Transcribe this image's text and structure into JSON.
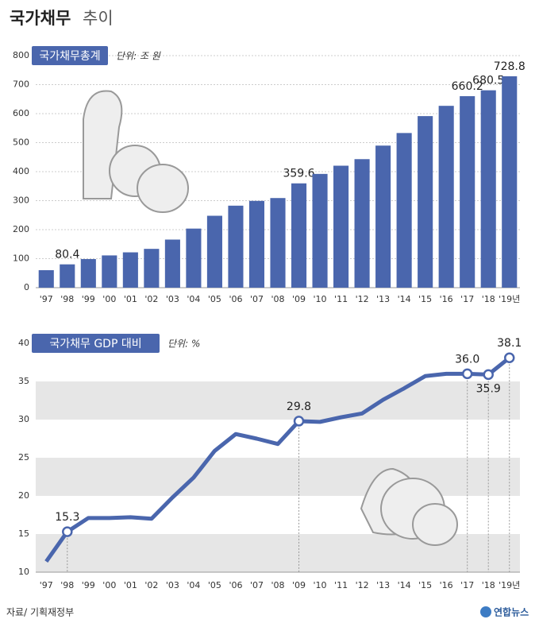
{
  "header": {
    "title": "국가채무",
    "title_suffix": "추이"
  },
  "chart_data": [
    {
      "type": "bar",
      "title": "국가채무총계",
      "unit": "단위: 조 원",
      "color": "#4a66ad",
      "categories": [
        "'97",
        "'98",
        "'99",
        "'00",
        "'01",
        "'02",
        "'03",
        "'04",
        "'05",
        "'06",
        "'07",
        "'08",
        "'09",
        "'10",
        "'11",
        "'12",
        "'13",
        "'14",
        "'15",
        "'16",
        "'17",
        "'18",
        "'19년"
      ],
      "values": [
        60.3,
        80.4,
        98.6,
        111.2,
        121.8,
        133.8,
        165.8,
        203.7,
        247.9,
        282.7,
        299.2,
        309.0,
        359.6,
        392.2,
        420.5,
        443.1,
        489.8,
        533.2,
        591.5,
        626.9,
        660.2,
        680.5,
        728.8
      ],
      "value_labels": [
        null,
        "80.4",
        null,
        null,
        null,
        null,
        null,
        null,
        null,
        null,
        null,
        null,
        "359.6",
        null,
        null,
        null,
        null,
        null,
        null,
        null,
        "660.2",
        "680.5",
        "728.8"
      ],
      "ylim": [
        0,
        800
      ],
      "yticks": [
        0,
        100,
        200,
        300,
        400,
        500,
        600,
        700,
        800
      ],
      "grid": true
    },
    {
      "type": "line",
      "title": "국가채무 GDP 대비",
      "unit": "단위: %",
      "color": "#4a66ad",
      "categories": [
        "'97",
        "'98",
        "'99",
        "'00",
        "'01",
        "'02",
        "'03",
        "'04",
        "'05",
        "'06",
        "'07",
        "'08",
        "'09",
        "'10",
        "'11",
        "'12",
        "'13",
        "'14",
        "'15",
        "'16",
        "'17",
        "'18",
        "'19년"
      ],
      "values": [
        11.4,
        15.3,
        17.1,
        17.1,
        17.2,
        17.0,
        19.8,
        22.4,
        25.9,
        28.1,
        27.5,
        26.8,
        29.8,
        29.7,
        30.3,
        30.8,
        32.6,
        34.1,
        35.7,
        36.0,
        36.0,
        35.9,
        38.1
      ],
      "value_labels": [
        null,
        "15.3",
        null,
        null,
        null,
        null,
        null,
        null,
        null,
        null,
        null,
        null,
        "29.8",
        null,
        null,
        null,
        null,
        null,
        null,
        null,
        "36.0",
        "35.9",
        "38.1"
      ],
      "ylim": [
        10,
        40
      ],
      "yticks": [
        10,
        15,
        20,
        25,
        30,
        35,
        40
      ],
      "banded_grid": true
    }
  ],
  "footer": {
    "source": "자료/ 기획재정부",
    "logo": "연합뉴스"
  }
}
